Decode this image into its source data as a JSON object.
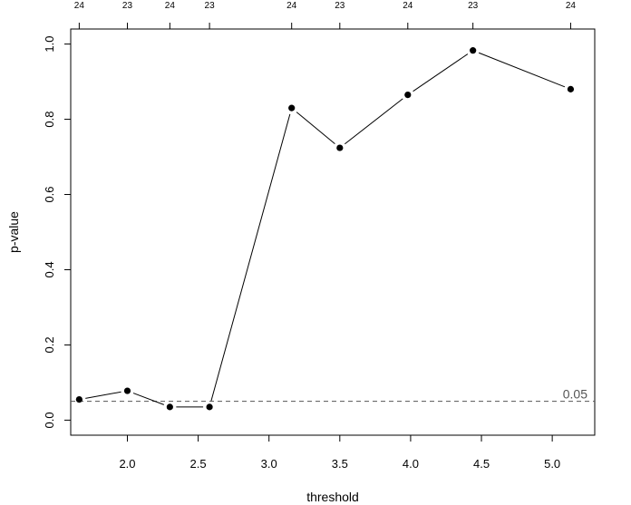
{
  "chart_data": {
    "type": "line",
    "xlabel": "threshold",
    "ylabel": "p-value",
    "xlim": [
      1.6,
      5.3
    ],
    "ylim": [
      -0.04,
      1.04
    ],
    "x_ticks": [
      "2.0",
      "2.5",
      "3.0",
      "3.5",
      "4.0",
      "4.5",
      "5.0"
    ],
    "y_ticks": [
      "0.0",
      "0.2",
      "0.4",
      "0.6",
      "0.8",
      "1.0"
    ],
    "x": [
      1.66,
      2.0,
      2.3,
      2.58,
      3.16,
      3.5,
      3.98,
      4.44,
      5.13
    ],
    "values": [
      0.055,
      0.078,
      0.035,
      0.035,
      0.83,
      0.724,
      0.865,
      0.983,
      0.88
    ],
    "top_labels": [
      "24",
      "23",
      "24",
      "23",
      "24",
      "23",
      "24",
      "23",
      "24"
    ],
    "reference_line": {
      "y": 0.05,
      "label": "0.05",
      "style": "dashed",
      "color": "#555555"
    },
    "marker": "filled-circle",
    "line_color": "#000000"
  }
}
